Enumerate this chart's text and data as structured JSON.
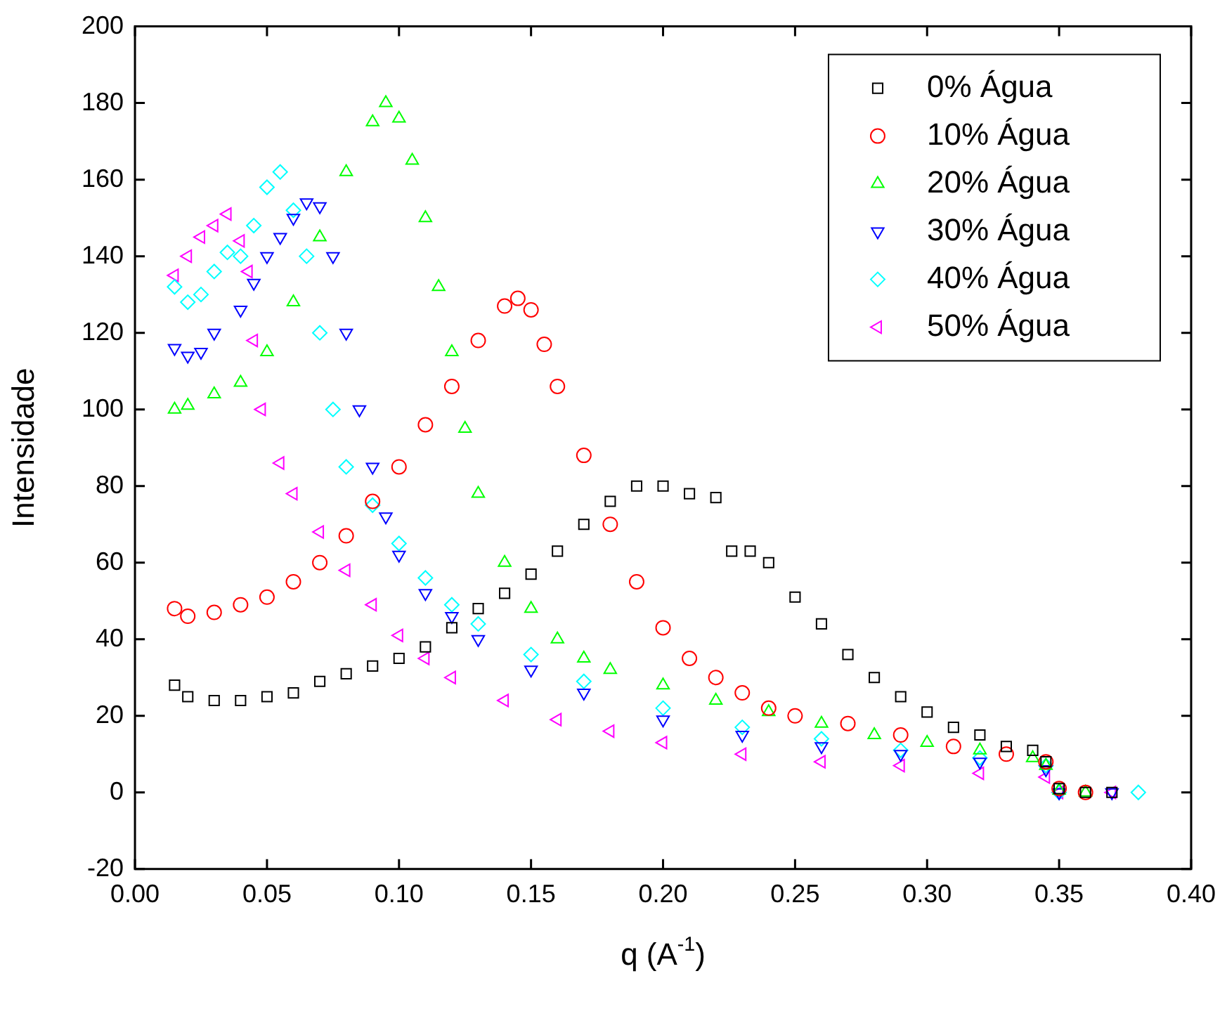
{
  "chart_data": {
    "type": "scatter",
    "xlabel": "q (A$^{-1}$)",
    "ylabel": "Intensidade",
    "legend": "top right",
    "grid": false,
    "xlim": [
      0,
      0.4
    ],
    "ylim": [
      -20,
      200
    ],
    "xticks": [
      {
        "value": 0,
        "label": "0.00"
      },
      {
        "value": 0.05,
        "label": "0.05"
      },
      {
        "value": 0.1,
        "label": "0.10"
      },
      {
        "value": 0.15,
        "label": "0.15"
      },
      {
        "value": 0.2,
        "label": "0.20"
      },
      {
        "value": 0.25,
        "label": "0.25"
      },
      {
        "value": 0.3,
        "label": "0.30"
      },
      {
        "value": 0.35,
        "label": "0.35"
      },
      {
        "value": 0.4,
        "label": "0.40"
      }
    ],
    "yticks": [
      -20,
      0,
      20,
      40,
      60,
      80,
      100,
      120,
      140,
      160,
      180,
      200
    ],
    "series": [
      {
        "name": "0% Água",
        "color": "#000000",
        "marker": "square",
        "x": [
          0.015,
          0.02,
          0.03,
          0.04,
          0.05,
          0.06,
          0.07,
          0.08,
          0.09,
          0.1,
          0.11,
          0.12,
          0.13,
          0.14,
          0.15,
          0.16,
          0.17,
          0.18,
          0.19,
          0.2,
          0.21,
          0.22,
          0.226,
          0.233,
          0.24,
          0.25,
          0.26,
          0.27,
          0.28,
          0.29,
          0.3,
          0.31,
          0.32,
          0.33,
          0.34,
          0.345,
          0.35,
          0.36,
          0.37
        ],
        "values": [
          28,
          25,
          24,
          24,
          25,
          26,
          29,
          31,
          33,
          35,
          38,
          43,
          48,
          52,
          57,
          63,
          70,
          76,
          80,
          80,
          78,
          77,
          63,
          63,
          60,
          51,
          44,
          36,
          30,
          25,
          21,
          17,
          15,
          12,
          11,
          8,
          1,
          0,
          0
        ]
      },
      {
        "name": "10% Água",
        "color": "#ff0000",
        "marker": "circle",
        "x": [
          0.015,
          0.02,
          0.03,
          0.04,
          0.05,
          0.06,
          0.07,
          0.08,
          0.09,
          0.1,
          0.11,
          0.12,
          0.13,
          0.14,
          0.145,
          0.15,
          0.155,
          0.16,
          0.17,
          0.18,
          0.19,
          0.2,
          0.21,
          0.22,
          0.23,
          0.24,
          0.25,
          0.27,
          0.29,
          0.31,
          0.33,
          0.345,
          0.35,
          0.36
        ],
        "values": [
          48,
          46,
          47,
          49,
          51,
          55,
          60,
          67,
          76,
          85,
          96,
          106,
          118,
          127,
          129,
          126,
          117,
          106,
          88,
          70,
          55,
          43,
          35,
          30,
          26,
          22,
          20,
          18,
          15,
          12,
          10,
          8,
          1,
          0
        ]
      },
      {
        "name": "20% Água",
        "color": "#00ff00",
        "marker": "triangle",
        "x": [
          0.015,
          0.02,
          0.03,
          0.04,
          0.05,
          0.06,
          0.07,
          0.08,
          0.09,
          0.095,
          0.1,
          0.105,
          0.11,
          0.115,
          0.12,
          0.125,
          0.13,
          0.14,
          0.15,
          0.16,
          0.17,
          0.18,
          0.2,
          0.22,
          0.24,
          0.26,
          0.28,
          0.3,
          0.32,
          0.34,
          0.345,
          0.35,
          0.36
        ],
        "values": [
          100,
          101,
          104,
          107,
          115,
          128,
          145,
          162,
          175,
          180,
          176,
          165,
          150,
          132,
          115,
          95,
          78,
          60,
          48,
          40,
          35,
          32,
          28,
          24,
          21,
          18,
          15,
          13,
          11,
          9,
          7,
          0.5,
          0
        ]
      },
      {
        "name": "30% Água",
        "color": "#0000ff",
        "marker": "triangle-down",
        "x": [
          0.015,
          0.02,
          0.025,
          0.03,
          0.04,
          0.045,
          0.05,
          0.055,
          0.06,
          0.065,
          0.07,
          0.075,
          0.08,
          0.085,
          0.09,
          0.095,
          0.1,
          0.11,
          0.12,
          0.13,
          0.15,
          0.17,
          0.2,
          0.23,
          0.26,
          0.29,
          0.32,
          0.345,
          0.35,
          0.37
        ],
        "values": [
          116,
          114,
          115,
          120,
          126,
          133,
          140,
          145,
          150,
          154,
          153,
          140,
          120,
          100,
          85,
          72,
          62,
          52,
          46,
          40,
          32,
          26,
          19,
          15,
          12,
          10,
          8,
          6,
          0,
          0
        ]
      },
      {
        "name": "40% Água",
        "color": "#00ffff",
        "marker": "diamond",
        "x": [
          0.015,
          0.02,
          0.025,
          0.03,
          0.035,
          0.04,
          0.045,
          0.05,
          0.055,
          0.06,
          0.065,
          0.07,
          0.075,
          0.08,
          0.09,
          0.1,
          0.11,
          0.12,
          0.13,
          0.15,
          0.17,
          0.2,
          0.23,
          0.26,
          0.29,
          0.32,
          0.345,
          0.35,
          0.38
        ],
        "values": [
          132,
          128,
          130,
          136,
          141,
          140,
          148,
          158,
          162,
          152,
          140,
          120,
          100,
          85,
          75,
          65,
          56,
          49,
          44,
          36,
          29,
          22,
          17,
          14,
          11,
          9,
          7,
          0,
          0
        ]
      },
      {
        "name": "50% Água",
        "color": "#ff00ff",
        "marker": "triangle-left",
        "x": [
          0.015,
          0.02,
          0.025,
          0.03,
          0.035,
          0.04,
          0.043,
          0.045,
          0.048,
          0.055,
          0.06,
          0.07,
          0.08,
          0.09,
          0.1,
          0.11,
          0.12,
          0.14,
          0.16,
          0.18,
          0.2,
          0.23,
          0.26,
          0.29,
          0.32,
          0.345,
          0.35,
          0.37
        ],
        "values": [
          135,
          140,
          145,
          148,
          151,
          144,
          136,
          118,
          100,
          86,
          78,
          68,
          58,
          49,
          41,
          35,
          30,
          24,
          19,
          16,
          13,
          10,
          8,
          7,
          5,
          4,
          0,
          0
        ]
      }
    ]
  }
}
